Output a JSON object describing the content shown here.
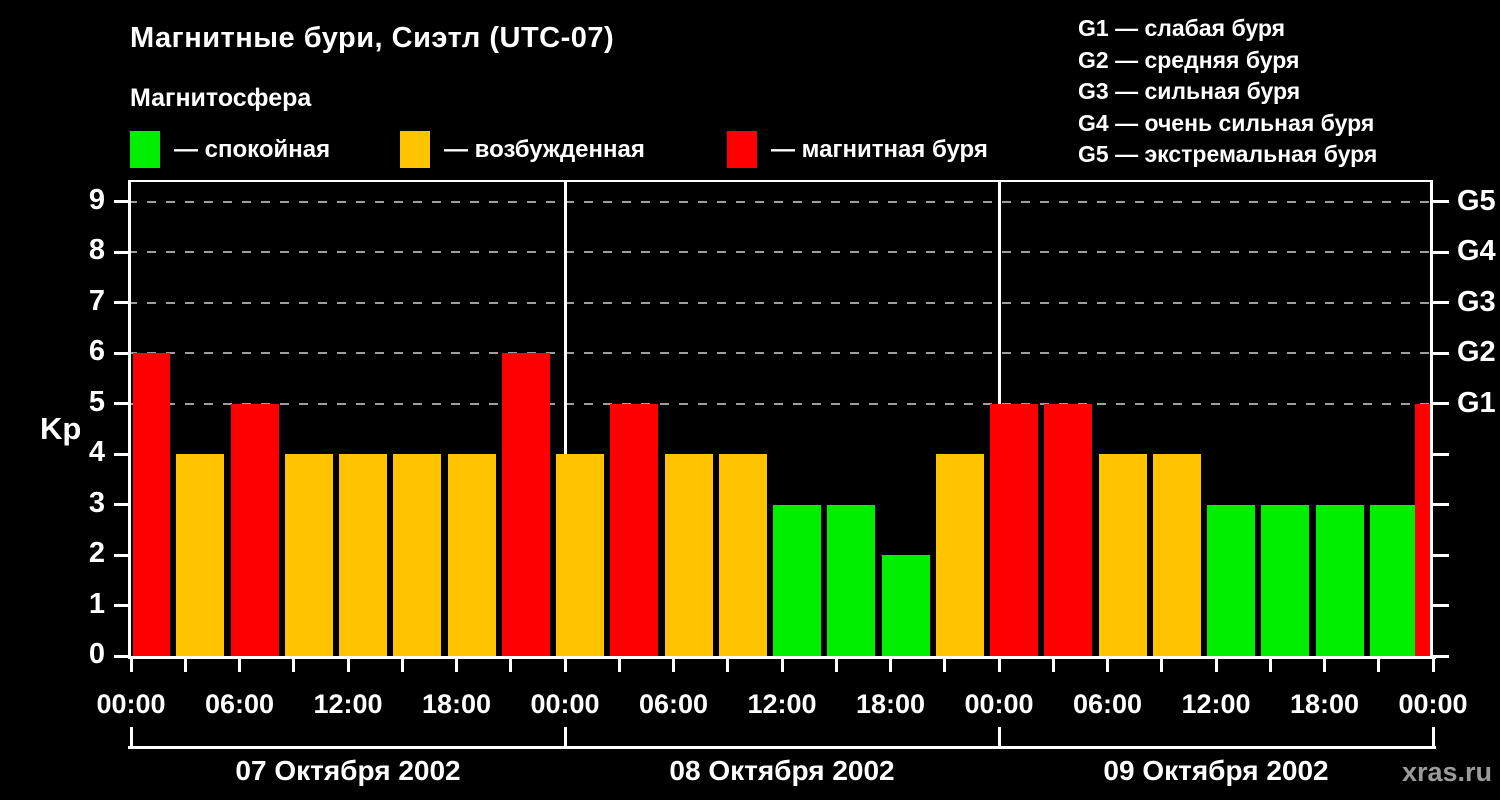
{
  "header": {
    "title": "Магнитные бури, Сиэтл (UTC-07)",
    "subtitle": "Магнитосфера"
  },
  "legend": {
    "items": [
      {
        "key": "quiet",
        "label": "— спокойная"
      },
      {
        "key": "active",
        "label": "— возбужденная"
      },
      {
        "key": "storm",
        "label": "— магнитная буря"
      }
    ]
  },
  "storm_scale_legend": {
    "items": [
      "G1 — слабая буря",
      "G2 — средняя буря",
      "G3 — сильная буря",
      "G4 — очень сильная буря",
      "G5 — экстремальная буря"
    ]
  },
  "watermark": "xras.ru",
  "chart_data": {
    "type": "bar",
    "ylabel": "Kp",
    "ylim": [
      0,
      9
    ],
    "interval_hours": 3,
    "grid_style": "dashed",
    "gridlines_at": [
      5,
      6,
      7,
      8,
      9
    ],
    "time_tick_labels": [
      "00:00",
      "06:00",
      "12:00",
      "18:00"
    ],
    "trailing_time_label": "00:00",
    "right_axis_labels": [
      {
        "level": 5,
        "label": "G1"
      },
      {
        "level": 6,
        "label": "G2"
      },
      {
        "level": 7,
        "label": "G3"
      },
      {
        "level": 8,
        "label": "G4"
      },
      {
        "level": 9,
        "label": "G5"
      }
    ],
    "days": [
      {
        "date": "07 Октября 2002",
        "kp_values": [
          6,
          4,
          5,
          4,
          4,
          4,
          4,
          6
        ]
      },
      {
        "date": "08 Октября 2002",
        "kp_values": [
          4,
          5,
          4,
          4,
          3,
          3,
          2,
          4
        ]
      },
      {
        "date": "09 Октября 2002",
        "kp_values": [
          5,
          5,
          4,
          4,
          3,
          3,
          3,
          3
        ]
      }
    ],
    "partial_next_bar_kp": 5,
    "colors": {
      "quiet": "#00EE00",
      "active": "#FFC300",
      "storm": "#FF0000"
    },
    "color_rule": {
      "quiet_max": 3,
      "active_max": 4
    }
  }
}
